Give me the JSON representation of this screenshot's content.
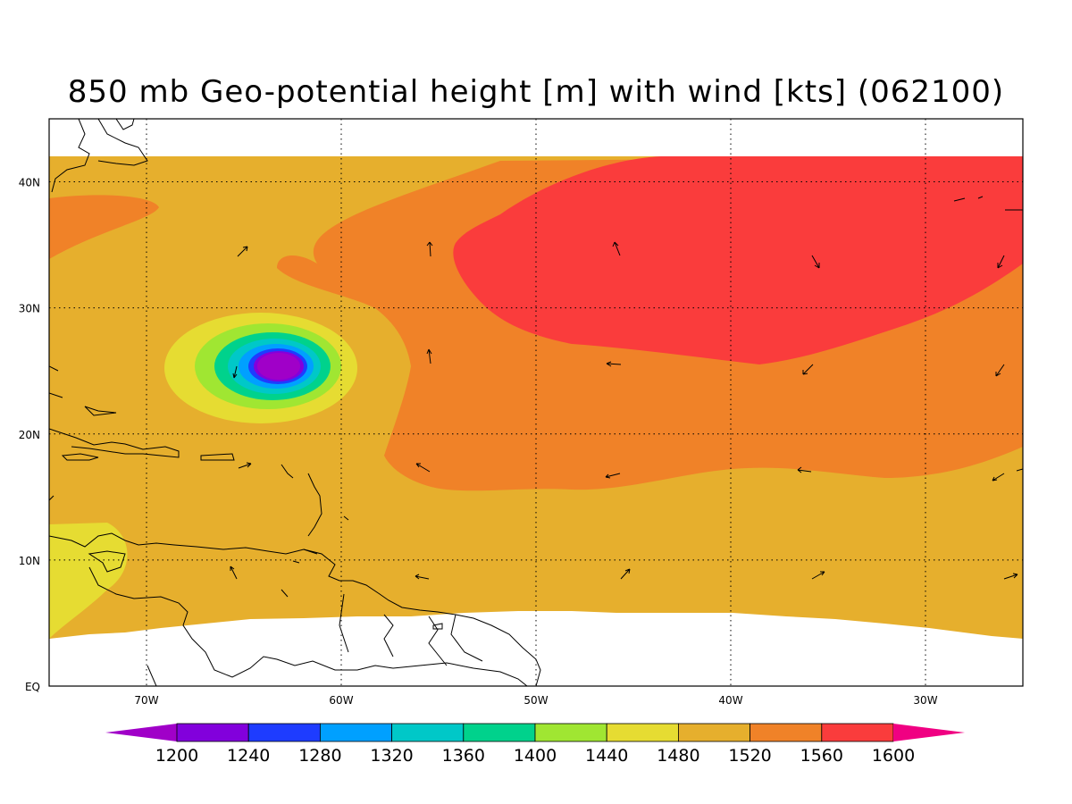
{
  "title": "850 mb Geo-potential height [m] with wind [kts] (062100)",
  "map": {
    "lon_range": [
      -75,
      -25
    ],
    "lat_range": [
      0,
      45
    ],
    "lon_ticks": [
      {
        "value": -70,
        "label": "70W"
      },
      {
        "value": -60,
        "label": "60W"
      },
      {
        "value": -50,
        "label": "50W"
      },
      {
        "value": -40,
        "label": "40W"
      },
      {
        "value": -30,
        "label": "30W"
      }
    ],
    "lat_ticks": [
      {
        "value": 0,
        "label": "EQ"
      },
      {
        "value": 10,
        "label": "10N"
      },
      {
        "value": 20,
        "label": "20N"
      },
      {
        "value": 30,
        "label": "30N"
      },
      {
        "value": 40,
        "label": "40N"
      }
    ],
    "grid": true
  },
  "colorbar": {
    "levels": [
      "1200",
      "1240",
      "1280",
      "1320",
      "1360",
      "1400",
      "1440",
      "1480",
      "1520",
      "1560",
      "1600"
    ],
    "colors": [
      "#a000c8",
      "#8200dc",
      "#1e3cff",
      "#00a0ff",
      "#00c8c8",
      "#00d28c",
      "#a0e632",
      "#e6dc32",
      "#e6af2d",
      "#f08228",
      "#fa3c3c",
      "#f00082"
    ]
  },
  "fills": {
    "c1480": "#e6dc32",
    "c1520": "#e6af2d",
    "c1560": "#f08228",
    "c1600": "#fa3c3c",
    "c1440": "#a0e632",
    "c1400": "#00d28c",
    "c1360": "#00c8c8",
    "c1320": "#00a0ff",
    "c1280": "#1e3cff",
    "c1240": "#8200dc",
    "c1200": "#a000c8"
  }
}
